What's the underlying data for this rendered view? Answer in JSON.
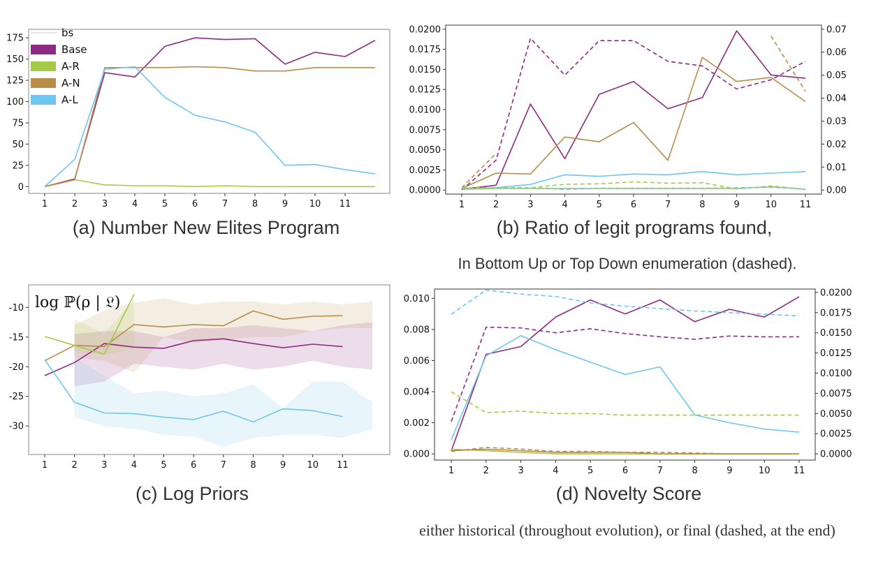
{
  "colors": {
    "base": "#8e2a82",
    "ar": "#a6c94a",
    "an": "#b88d4a",
    "al": "#6ec6ee"
  },
  "captions": {
    "a": "(a) Number New Elites Program",
    "b": "(b) Ratio of legit programs found,",
    "b_sub": "In Bottom Up or Top Down enumeration (dashed).",
    "c": "(c) Log Priors",
    "d": "(d) Novelty Score",
    "d_sub": "either historical (throughout evolution), or final (dashed, at the end)"
  },
  "chart_data": [
    {
      "id": "a",
      "type": "line",
      "x": [
        1,
        2,
        3,
        4,
        5,
        6,
        7,
        8,
        9,
        10,
        11,
        12
      ],
      "x_ticks": [
        1,
        2,
        3,
        4,
        5,
        6,
        7,
        8,
        9,
        10,
        11
      ],
      "y_ticks": [
        0,
        25,
        50,
        75,
        100,
        125,
        150,
        175
      ],
      "ylim": [
        -8,
        185
      ],
      "legend": [
        "bs",
        "Base",
        "A-R",
        "A-N",
        "A-L"
      ],
      "series": [
        {
          "name": "Base",
          "color": "#8e2a82",
          "values": [
            0,
            9,
            134,
            129,
            165,
            175,
            173,
            174,
            144,
            158,
            153,
            172
          ]
        },
        {
          "name": "A-R",
          "color": "#a6c94a",
          "values": [
            0,
            8,
            2,
            1,
            1,
            0,
            1,
            0,
            0,
            0,
            0,
            0
          ]
        },
        {
          "name": "A-N",
          "color": "#b88d4a",
          "values": [
            0,
            8,
            140,
            140,
            140,
            141,
            140,
            136,
            136,
            140,
            140,
            140
          ]
        },
        {
          "name": "A-L",
          "color": "#6ec6ee",
          "values": [
            0,
            32,
            138,
            141,
            105,
            84,
            76,
            64,
            25,
            26,
            20,
            15
          ]
        }
      ]
    },
    {
      "id": "b",
      "type": "line",
      "x_ticks": [
        1,
        2,
        3,
        4,
        5,
        6,
        7,
        8,
        9,
        10,
        11
      ],
      "y_ticks_left": [
        "0.0000",
        "0.0025",
        "0.0050",
        "0.0075",
        "0.0100",
        "0.0125",
        "0.0150",
        "0.0175",
        "0.0200"
      ],
      "y_ticks_right": [
        "0.00",
        "0.01",
        "0.02",
        "0.03",
        "0.04",
        "0.05",
        "0.06",
        "0.07"
      ],
      "ylim_left": [
        -0.0005,
        0.0205
      ],
      "ylim_right": [
        -0.00175,
        0.07175
      ],
      "series": [
        {
          "name": "Base",
          "color": "#8e2a82",
          "axis": "left",
          "dashed": false,
          "x": [
            1,
            2,
            3,
            4,
            5,
            6,
            7,
            8,
            9,
            10,
            11
          ],
          "values": [
            0.0001,
            0.0006,
            0.0107,
            0.0039,
            0.0119,
            0.0135,
            0.0101,
            0.0115,
            0.0198,
            0.0143,
            0.0139
          ]
        },
        {
          "name": "A-N",
          "color": "#b88d4a",
          "axis": "left",
          "dashed": false,
          "x": [
            1,
            2,
            3,
            4,
            5,
            6,
            7,
            8,
            9,
            10,
            11
          ],
          "values": [
            0.0002,
            0.0021,
            0.002,
            0.0066,
            0.006,
            0.0084,
            0.0037,
            0.0165,
            0.0135,
            0.014,
            0.011
          ]
        },
        {
          "name": "A-L",
          "color": "#6ec6ee",
          "axis": "left",
          "dashed": false,
          "x": [
            1,
            2,
            3,
            4,
            5,
            6,
            7,
            8,
            9,
            10,
            11
          ],
          "values": [
            0.0001,
            0.0003,
            0.0007,
            0.0019,
            0.0017,
            0.002,
            0.0019,
            0.0023,
            0.0019,
            0.0021,
            0.0023
          ]
        },
        {
          "name": "A-R",
          "color": "#a6c94a",
          "axis": "left",
          "dashed": false,
          "x": [
            1,
            2,
            3,
            4,
            5,
            6,
            7,
            8,
            9,
            10,
            11
          ],
          "values": [
            0.0001,
            0.0002,
            0.0002,
            0.0002,
            0.0002,
            0.0002,
            0.0002,
            0.0002,
            0.0002,
            0.0004,
            0.0001
          ]
        },
        {
          "name": "Base",
          "color": "#8e2a82",
          "axis": "right",
          "dashed": true,
          "x": [
            1,
            2,
            3,
            4,
            5,
            6,
            7,
            8,
            9,
            10,
            11
          ],
          "values": [
            0.0,
            0.013,
            0.066,
            0.05,
            0.065,
            0.065,
            0.056,
            0.054,
            0.044,
            0.048,
            0.056
          ]
        },
        {
          "name": "A-N",
          "color": "#b88d4a",
          "axis": "right",
          "dashed": true,
          "x": [
            1,
            2
          ],
          "values": [
            0.001,
            0.016
          ]
        },
        {
          "name": "A-N",
          "color": "#b88d4a",
          "axis": "right",
          "dashed": true,
          "x": [
            10,
            11
          ],
          "values": [
            0.067,
            0.043
          ]
        },
        {
          "name": "A-R",
          "color": "#a6c94a",
          "axis": "right",
          "dashed": true,
          "x": [
            1,
            2,
            3,
            4,
            5,
            6,
            7,
            8,
            9,
            10,
            11
          ],
          "values": [
            0.001,
            0.001,
            0.001,
            0.0025,
            0.0027,
            0.0036,
            0.003,
            0.0032,
            0.0005,
            0.0018,
            0.0003
          ]
        },
        {
          "name": "A-L",
          "color": "#6ec6ee",
          "axis": "right",
          "dashed": true,
          "x": [
            1,
            2,
            3,
            4,
            5,
            6,
            7,
            8,
            9,
            10,
            11
          ],
          "values": [
            0.0005,
            0.001,
            0.001,
            0.0003,
            0.0008,
            0.0008,
            0.0008,
            0.0008,
            0.001,
            0.0012,
            0.0005
          ]
        }
      ]
    },
    {
      "id": "c",
      "type": "area",
      "title": "log ℙ(ρ | 𝔏)",
      "x_ticks": [
        1,
        2,
        3,
        4,
        5,
        6,
        7,
        8,
        9,
        10,
        11
      ],
      "y_ticks": [
        -10,
        -15,
        -20,
        -25,
        -30
      ],
      "ylim": [
        -34.8,
        -6.2
      ],
      "series": [
        {
          "name": "Base",
          "color": "#8e2a82",
          "x": [
            1,
            2,
            3,
            4,
            5,
            6,
            7,
            8,
            9,
            10,
            11
          ],
          "values": [
            -21.5,
            -19.3,
            -16.1,
            -16.7,
            -16.9,
            -15.6,
            -15.3,
            -16.1,
            -16.8,
            -16.2,
            -16.6
          ],
          "band_x": [
            2,
            3,
            4,
            5,
            6,
            7,
            8,
            9,
            10,
            11,
            12
          ],
          "band_upper": [
            -14.5,
            -14.0,
            -14.0,
            -15.0,
            -13.5,
            -13.5,
            -13.0,
            -13.5,
            -14.0,
            -13.0,
            -12.5
          ],
          "band_lower": [
            -23.3,
            -22.5,
            -19.5,
            -20.0,
            -20.5,
            -19.5,
            -20.5,
            -20.0,
            -19.0,
            -20.0,
            -20.5
          ]
        },
        {
          "name": "A-N",
          "color": "#b88d4a",
          "x": [
            1,
            2,
            3,
            4,
            5,
            6,
            7,
            8,
            9,
            10,
            11
          ],
          "values": [
            -19.0,
            -16.4,
            -16.6,
            -12.9,
            -13.3,
            -12.9,
            -13.1,
            -10.6,
            -12.0,
            -11.5,
            -11.4
          ],
          "band_x": [
            2,
            3,
            4,
            5,
            6,
            7,
            8,
            9,
            10,
            11,
            12
          ],
          "band_upper": [
            -13.0,
            -10.5,
            -9.2,
            -8.5,
            -9.5,
            -9.0,
            -9.0,
            -9.5,
            -9.0,
            -9.5,
            -9.0
          ],
          "band_lower": [
            -18.5,
            -19.0,
            -21.0,
            -15.0,
            -16.0,
            -15.5,
            -15.0,
            -15.0,
            -14.0,
            -13.5,
            -13.5
          ]
        },
        {
          "name": "A-R",
          "color": "#a6c94a",
          "x": [
            1,
            2,
            3,
            4
          ],
          "values": [
            -14.9,
            -16.4,
            -17.9,
            -7.8
          ],
          "band_x": [
            2,
            3,
            4
          ],
          "band_upper": [
            -12.0,
            -14.5,
            -8.5
          ],
          "band_lower": [
            -17.5,
            -18.0,
            -17.0
          ]
        },
        {
          "name": "A-L",
          "color": "#6ec6ee",
          "x": [
            1,
            2,
            3,
            4,
            5,
            6,
            7,
            8,
            9,
            10,
            11
          ],
          "values": [
            -18.8,
            -26.0,
            -27.8,
            -27.9,
            -28.5,
            -28.9,
            -27.5,
            -29.3,
            -27.1,
            -27.4,
            -28.4
          ],
          "band_x": [
            2,
            3,
            4,
            5,
            6,
            7,
            8,
            9,
            10,
            11,
            12
          ],
          "band_upper": [
            -18.5,
            -21.5,
            -24.5,
            -24.0,
            -25.0,
            -24.5,
            -23.0,
            -27.0,
            -22.5,
            -22.5,
            -26.0
          ],
          "band_lower": [
            -28.5,
            -30.0,
            -30.5,
            -31.5,
            -31.8,
            -33.5,
            -32.0,
            -31.5,
            -31.5,
            -32.0,
            -30.5
          ]
        }
      ]
    },
    {
      "id": "d",
      "type": "line",
      "x_ticks": [
        1,
        2,
        3,
        4,
        5,
        6,
        7,
        8,
        9,
        10,
        11
      ],
      "y_ticks_left": [
        "0.000",
        "0.002",
        "0.004",
        "0.006",
        "0.008",
        "0.010"
      ],
      "y_ticks_right": [
        "0.0000",
        "0.0025",
        "0.0050",
        "0.0075",
        "0.0100",
        "0.0125",
        "0.0150",
        "0.0175",
        "0.0200"
      ],
      "ylim_left": [
        -0.0004,
        0.0106
      ],
      "ylim_right": [
        -0.00077,
        0.02042
      ],
      "series": [
        {
          "name": "Base",
          "color": "#8e2a82",
          "axis": "left",
          "dashed": false,
          "x": [
            1,
            2,
            3,
            4,
            5,
            6,
            7,
            8,
            9,
            10,
            11
          ],
          "values": [
            0.0002,
            0.0064,
            0.0069,
            0.0088,
            0.0099,
            0.009,
            0.0099,
            0.0085,
            0.0093,
            0.0088,
            0.0101
          ]
        },
        {
          "name": "A-L",
          "color": "#6ec6ee",
          "axis": "left",
          "dashed": false,
          "x": [
            1,
            2,
            3,
            4,
            5,
            6,
            7,
            8,
            9,
            10,
            11
          ],
          "values": [
            0.0009,
            0.0063,
            0.0076,
            0.0067,
            0.0059,
            0.0051,
            0.0056,
            0.0025,
            0.002,
            0.0016,
            0.0014
          ]
        },
        {
          "name": "A-R",
          "color": "#a6c94a",
          "axis": "left",
          "dashed": false,
          "x": [
            1,
            2,
            3,
            4,
            5,
            6,
            7,
            8,
            9,
            10,
            11
          ],
          "values": [
            0.0003,
            0.0002,
            0.0001,
            0.0,
            0.0,
            0.0,
            0.0,
            0.0,
            0.0,
            0.0,
            0.0
          ]
        },
        {
          "name": "A-N",
          "color": "#b88d4a",
          "axis": "left",
          "dashed": false,
          "x": [
            1,
            2,
            3,
            4,
            5,
            6,
            7,
            8,
            9,
            10,
            11
          ],
          "values": [
            0.0002,
            0.0003,
            0.0002,
            0.0001,
            0.0001,
            0.0001,
            0.0,
            0.0,
            0.0,
            0.0,
            0.0
          ]
        },
        {
          "name": "A-L",
          "color": "#6ec6ee",
          "axis": "right",
          "dashed": true,
          "x": [
            1,
            2,
            3,
            4,
            5,
            6,
            7,
            8,
            9,
            10,
            11
          ],
          "values": [
            0.0173,
            0.0203,
            0.0198,
            0.0195,
            0.0187,
            0.0183,
            0.018,
            0.0177,
            0.0175,
            0.0173,
            0.0171
          ]
        },
        {
          "name": "Base",
          "color": "#8e2a82",
          "axis": "right",
          "dashed": true,
          "x": [
            1,
            2,
            3,
            4,
            5,
            6,
            7,
            8,
            9,
            10,
            11
          ],
          "values": [
            0.004,
            0.0157,
            0.0156,
            0.015,
            0.0155,
            0.0149,
            0.0145,
            0.0142,
            0.0146,
            0.0145,
            0.0145
          ]
        },
        {
          "name": "A-R",
          "color": "#a6c94a",
          "axis": "right",
          "dashed": true,
          "x": [
            1,
            2,
            3,
            4,
            5,
            6,
            7,
            8,
            9,
            10,
            11
          ],
          "values": [
            0.0077,
            0.0051,
            0.0053,
            0.005,
            0.005,
            0.0048,
            0.0048,
            0.0048,
            0.0048,
            0.0048,
            0.0048
          ]
        },
        {
          "name": "A-N",
          "color": "#b88d4a",
          "axis": "right",
          "dashed": true,
          "x": [
            1,
            2,
            3,
            4,
            5,
            6,
            7,
            8,
            9,
            10,
            11
          ],
          "values": [
            0.0003,
            0.0008,
            0.0006,
            0.0003,
            0.0003,
            0.0002,
            0.0002,
            0.0001,
            0.0,
            0.0,
            0.0
          ]
        }
      ]
    }
  ]
}
